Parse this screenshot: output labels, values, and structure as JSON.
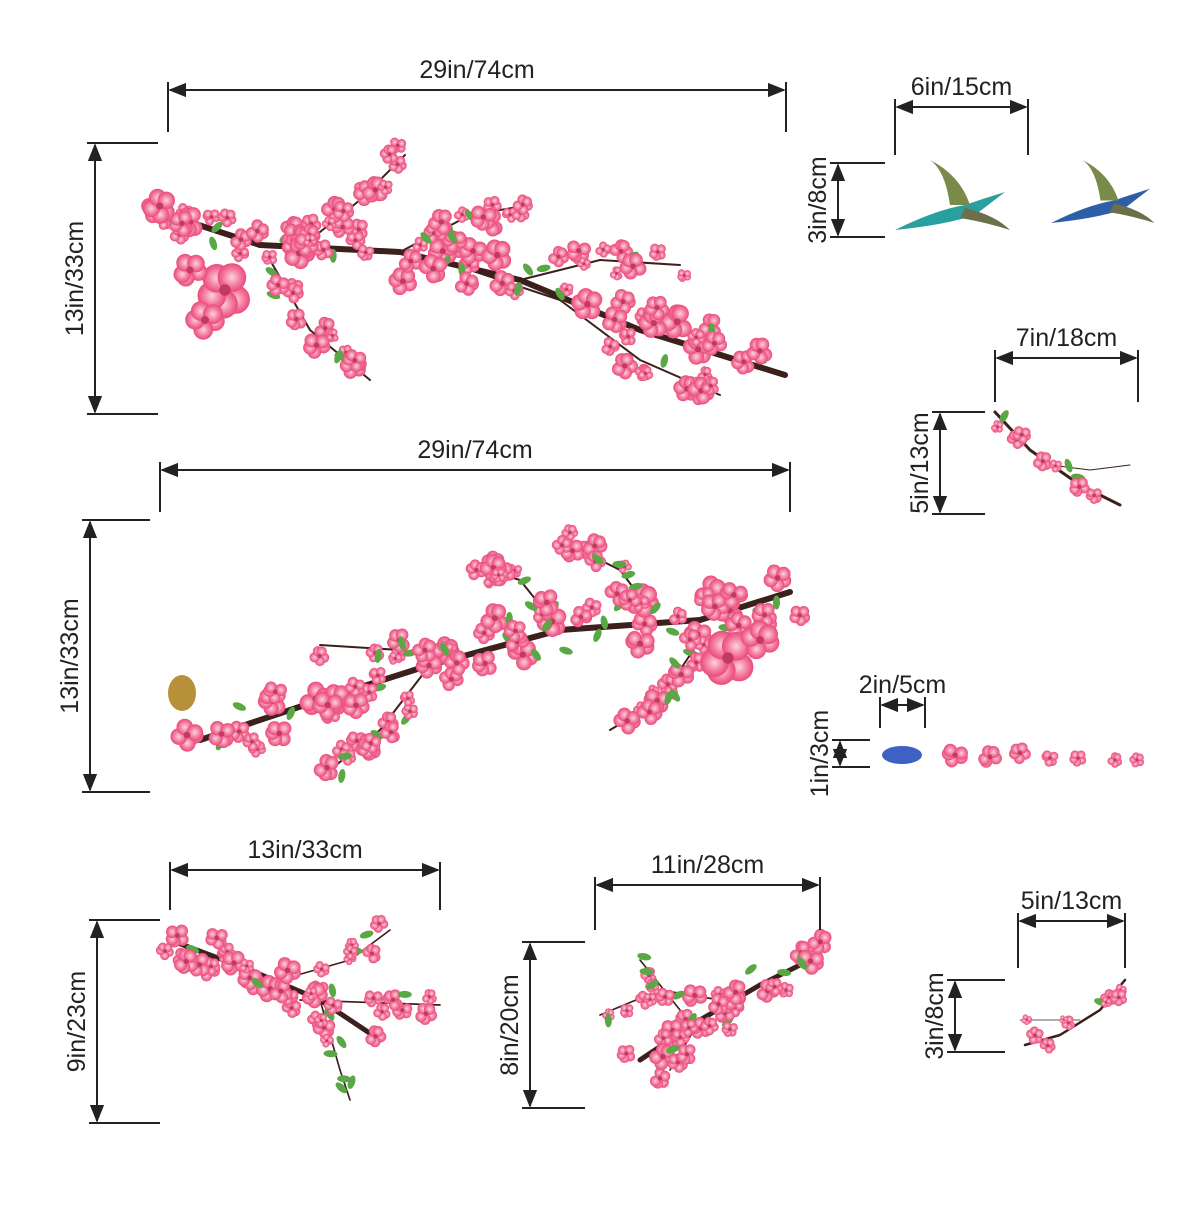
{
  "items": [
    {
      "width": "29in/74cm",
      "height": "13in/33cm"
    },
    {
      "width": "29in/74cm",
      "height": "13in/33cm"
    },
    {
      "width": "6in/15cm",
      "height": "3in/8cm"
    },
    {
      "width": "7in/18cm",
      "height": "5in/13cm"
    },
    {
      "width": "2in/5cm",
      "height": "1in/3cm"
    },
    {
      "width": "13in/33cm",
      "height": "9in/23cm"
    },
    {
      "width": "11in/28cm",
      "height": "8in/20cm"
    },
    {
      "width": "5in/13cm",
      "height": "3in/8cm"
    }
  ]
}
